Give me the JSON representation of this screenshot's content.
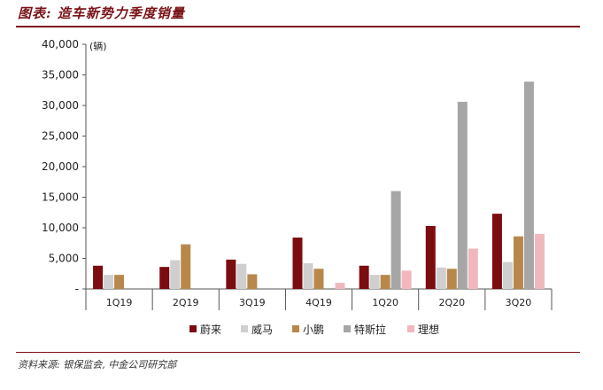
{
  "header": {
    "title": "图表: 造车新势力季度销量"
  },
  "footer": {
    "source": "资料来源: 银保监会, 中金公司研究部"
  },
  "chart_data": {
    "type": "bar",
    "unit_label": "(辆)",
    "categories": [
      "1Q19",
      "2Q19",
      "3Q19",
      "4Q19",
      "1Q20",
      "2Q20",
      "3Q20"
    ],
    "ylim": [
      0,
      40000
    ],
    "yticks": [
      0,
      5000,
      10000,
      15000,
      20000,
      25000,
      30000,
      35000,
      40000
    ],
    "ytick_labels": [
      "-",
      "5,000",
      "10,000",
      "15,000",
      "20,000",
      "25,000",
      "30,000",
      "35,000",
      "40,000"
    ],
    "grid": false,
    "legend_position": "bottom",
    "series": [
      {
        "name": "蔚来",
        "color": "#7b0c10",
        "values": [
          3800,
          3600,
          4800,
          8400,
          3800,
          10300,
          12300
        ]
      },
      {
        "name": "威马",
        "color": "#cfcfcf",
        "values": [
          2300,
          4700,
          4100,
          4200,
          2300,
          3500,
          4400
        ]
      },
      {
        "name": "小鹏",
        "color": "#b8884a",
        "values": [
          2300,
          7300,
          2400,
          3300,
          2300,
          3300,
          8600
        ]
      },
      {
        "name": "特斯拉",
        "color": "#a6a6a6",
        "values": [
          0,
          0,
          0,
          0,
          16000,
          30600,
          33900
        ]
      },
      {
        "name": "理想",
        "color": "#f0b8bc",
        "values": [
          0,
          0,
          0,
          1000,
          3000,
          6600,
          9000
        ]
      }
    ]
  }
}
